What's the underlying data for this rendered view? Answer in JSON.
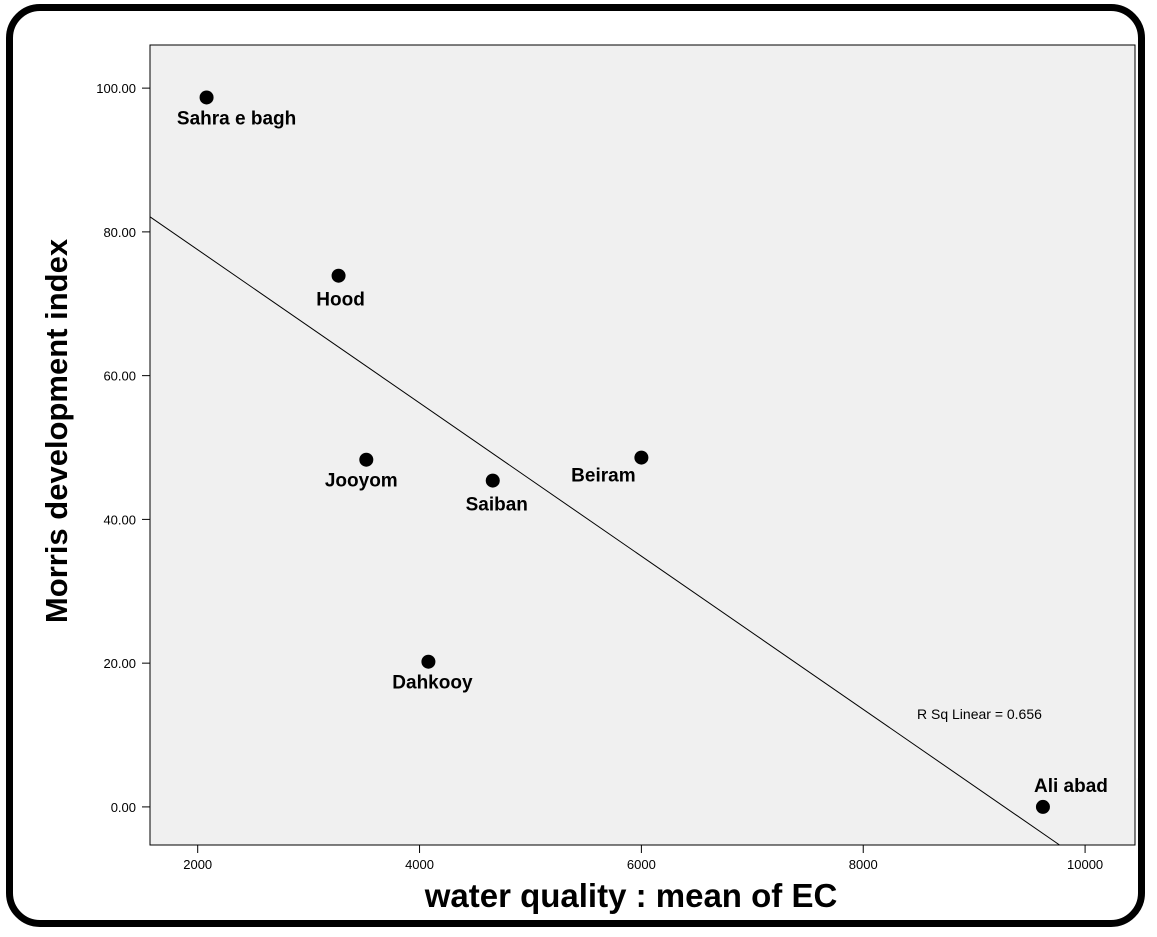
{
  "chart_data": {
    "type": "scatter",
    "title": "",
    "xlabel": "water quality : mean of EC",
    "ylabel": "Morris development index",
    "xlim": [
      1570,
      10450
    ],
    "ylim": [
      -5.3,
      106
    ],
    "xticks": [
      "2000",
      "4000",
      "6000",
      "8000",
      "10000"
    ],
    "xtick_values": [
      2000,
      4000,
      6000,
      8000,
      10000
    ],
    "yticks": [
      "0.00",
      "20.00",
      "40.00",
      "60.00",
      "80.00",
      "100.00"
    ],
    "ytick_values": [
      0,
      20,
      40,
      60,
      80,
      100
    ],
    "grid": false,
    "points": [
      {
        "label": "Sahra e bagh",
        "x": 2080,
        "y": 98.7
      },
      {
        "label": "Hood",
        "x": 3270,
        "y": 73.9
      },
      {
        "label": "Jooyom",
        "x": 3520,
        "y": 48.3
      },
      {
        "label": "Saiban",
        "x": 4660,
        "y": 45.4
      },
      {
        "label": "Beiram",
        "x": 6000,
        "y": 48.6
      },
      {
        "label": "Dahkooy",
        "x": 4080,
        "y": 20.2
      },
      {
        "label": "Ali abad",
        "x": 9620,
        "y": 0.0
      }
    ],
    "fit_line": {
      "x": [
        1570,
        9770
      ],
      "y": [
        82.1,
        -5.3
      ]
    },
    "annotation": "R Sq Linear = 0.656"
  }
}
